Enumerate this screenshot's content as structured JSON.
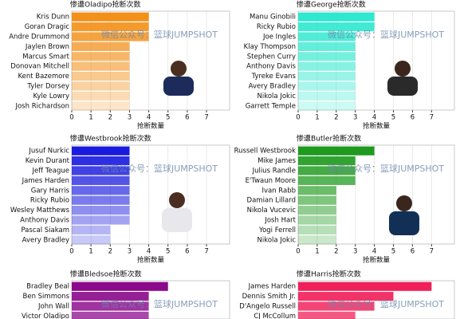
{
  "chart_data": [
    {
      "type": "bar",
      "orientation": "horizontal",
      "title": "惨遭Oladipo抢断次数",
      "categories": [
        "Kris Dunn",
        "Goran Dragic",
        "Andre Drummond",
        "Jaylen Brown",
        "Marcus Smart",
        "Donovan Mitchell",
        "Kent Bazemore",
        "Tyler Dorsey",
        "Kyle Lowry",
        "Josh Richardson"
      ],
      "values": [
        4,
        4,
        4,
        3,
        3,
        3,
        3,
        3,
        3,
        3
      ],
      "color": "#f39019",
      "xlim": [
        0,
        8.2
      ],
      "xticks": [
        0,
        1,
        2,
        3,
        4,
        5,
        6,
        7
      ],
      "xlabel": "抢断数量",
      "annotation": "微信公众号：篮球JUMPSHOT",
      "grid": true
    },
    {
      "type": "bar",
      "orientation": "horizontal",
      "title": "惨遭George抢断次数",
      "categories": [
        "Manu Ginobili",
        "Ricky Rubio",
        "Joe Ingles",
        "Klay Thompson",
        "Stephen Curry",
        "Anthony Davis",
        "Tyreke Evans",
        "Avery Bradley",
        "Nikola Jokic",
        "Garrett Temple"
      ],
      "values": [
        4,
        4,
        3,
        3,
        3,
        3,
        3,
        3,
        3,
        3
      ],
      "color": "#2ee8cf",
      "xlim": [
        0,
        8.2
      ],
      "xticks": [
        0,
        1,
        2,
        3,
        4,
        5,
        6,
        7
      ],
      "xlabel": "抢断数量",
      "annotation": "微信公众号：篮球JUMPSHOT",
      "grid": true
    },
    {
      "type": "bar",
      "orientation": "horizontal",
      "title": "惨遭Westbrook抢断次数",
      "categories": [
        "Jusuf Nurkic",
        "Kevin Durant",
        "Jeff Teague",
        "James Harden",
        "Gary Harris",
        "Ricky Rubio",
        "Wesley Matthews",
        "Anthony Davis",
        "Pascal Siakam",
        "Avery Bradley"
      ],
      "values": [
        3,
        3,
        3,
        3,
        3,
        3,
        3,
        3,
        2,
        2
      ],
      "color": "#1a1adf",
      "xlim": [
        0,
        8.2
      ],
      "xticks": [
        0,
        1,
        2,
        3,
        4,
        5,
        6,
        7
      ],
      "xlabel": "抢断数量",
      "annotation": "微信公众号：篮球JUMPSHOT",
      "grid": true
    },
    {
      "type": "bar",
      "orientation": "horizontal",
      "title": "惨遭Butler抢断次数",
      "categories": [
        "Russell Westbrook",
        "Mike James",
        "Julius Randle",
        "E'Twaun Moore",
        "Ivan Rabb",
        "Damian Lillard",
        "Nikola Vucevic",
        "Josh Hart",
        "Yogi Ferrell",
        "Nikola Jokic"
      ],
      "values": [
        4,
        3,
        3,
        3,
        2,
        2,
        2,
        2,
        2,
        2
      ],
      "color": "#1f9a1f",
      "xlim": [
        0,
        8.2
      ],
      "xticks": [
        0,
        1,
        2,
        3,
        4,
        5,
        6,
        7
      ],
      "xlabel": "抢断数量",
      "annotation": "微信公众号：篮球JUMPSHOT",
      "grid": true
    },
    {
      "type": "bar",
      "orientation": "horizontal",
      "title": "惨遭Bledsoe抢断次数",
      "categories": [
        "Bradley Beal",
        "Ben Simmons",
        "John Wall",
        "Victor Oladipo"
      ],
      "values": [
        5,
        4,
        4,
        4
      ],
      "color": "#8b0a8b",
      "xlim": [
        0,
        8.2
      ],
      "annotation": "微信公众号：篮球JUMPSHOT",
      "grid": true
    },
    {
      "type": "bar",
      "orientation": "horizontal",
      "title": "惨遭Harris抢断次数",
      "categories": [
        "James Harden",
        "Dennis Smith Jr.",
        "D'Angelo Russell",
        "CJ McCollum"
      ],
      "values": [
        7,
        5,
        4,
        3
      ],
      "color": "#f0205a",
      "xlim": [
        0,
        8.2
      ],
      "annotation": "微信公众号：篮球JUMPSHOT",
      "grid": true
    }
  ]
}
